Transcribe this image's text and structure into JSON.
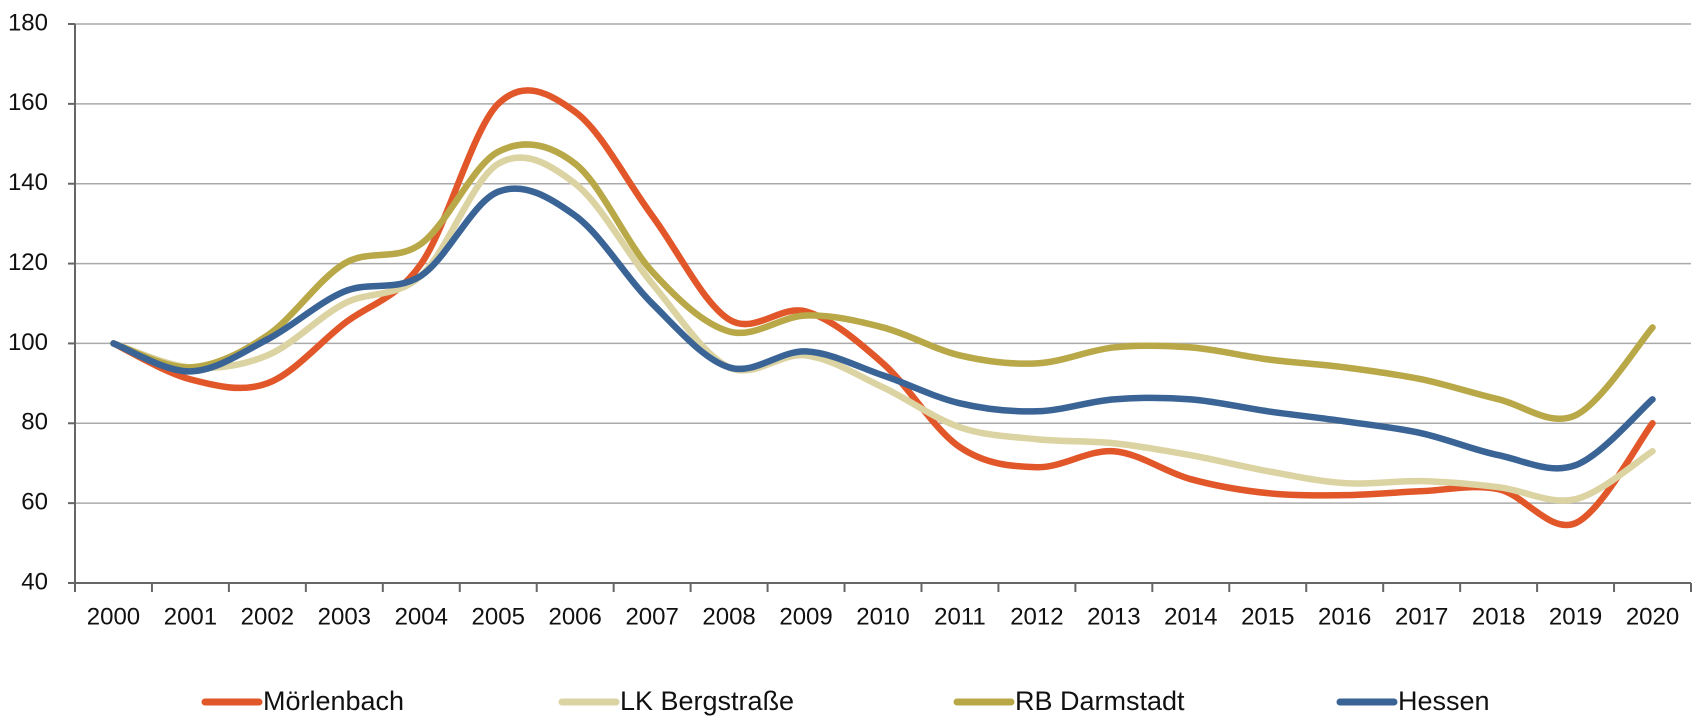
{
  "chart_data": {
    "type": "line",
    "categories": [
      "2000",
      "2001",
      "2002",
      "2003",
      "2004",
      "2005",
      "2006",
      "2007",
      "2008",
      "2009",
      "2010",
      "2011",
      "2012",
      "2013",
      "2014",
      "2015",
      "2016",
      "2017",
      "2018",
      "2019",
      "2020"
    ],
    "series": [
      {
        "name": "Mörlenbach",
        "color": "#e2572a",
        "values": [
          100,
          91,
          90,
          105,
          120,
          160,
          158,
          132,
          106,
          108,
          95,
          74,
          69,
          73,
          66,
          62.5,
          62,
          63,
          63.5,
          55,
          80
        ]
      },
      {
        "name": "LK Bergstraße",
        "color": "#dcd3a2",
        "values": [
          100,
          94,
          97,
          110,
          117,
          145,
          140,
          115,
          94,
          97,
          89,
          79,
          76,
          75,
          72,
          68,
          65,
          65.5,
          64,
          61,
          73
        ]
      },
      {
        "name": "RB Darmstadt",
        "color": "#b9a848",
        "values": [
          100,
          94,
          102,
          120,
          125,
          148,
          145,
          118,
          103,
          107,
          104,
          97,
          95,
          99,
          99,
          96,
          94,
          91,
          86,
          82,
          104
        ]
      },
      {
        "name": "Hessen",
        "color": "#3a6496",
        "values": [
          100,
          93,
          101,
          113,
          117,
          138,
          132,
          110,
          94,
          98,
          92,
          85,
          83,
          86,
          86,
          83,
          80.5,
          77.5,
          72,
          69.5,
          86
        ]
      }
    ],
    "ylim": [
      40,
      180
    ],
    "yticks": [
      40,
      60,
      80,
      100,
      120,
      140,
      160,
      180
    ],
    "grid": true,
    "legend": "bottom"
  }
}
